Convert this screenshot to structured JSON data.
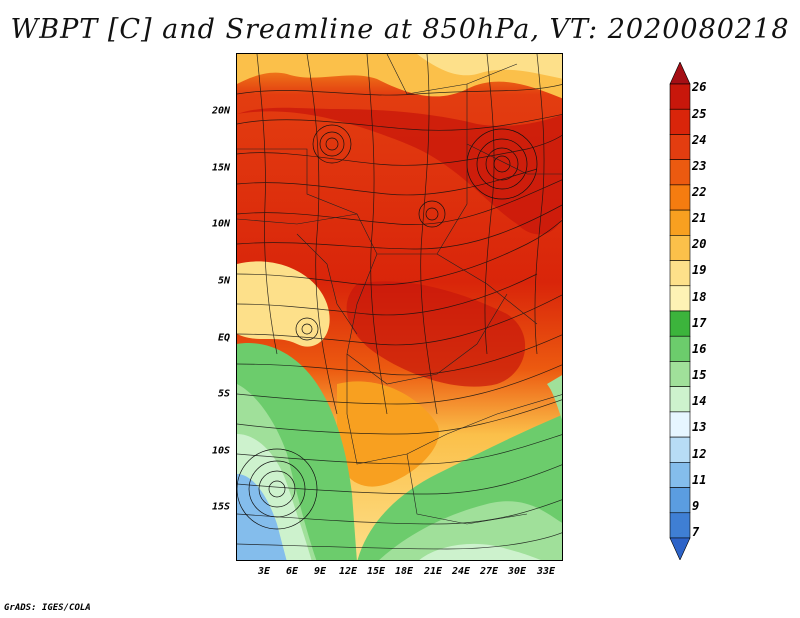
{
  "title": "WBPT [C] and Sreamline at 850hPa, VT: 2020080218",
  "credit": "GrADS: IGES/COLA",
  "map": {
    "lat_labels": [
      "20N",
      "15N",
      "10N",
      "5N",
      "EQ",
      "5S",
      "10S",
      "15S"
    ],
    "lon_labels": [
      "3E",
      "6E",
      "9E",
      "12E",
      "15E",
      "18E",
      "21E",
      "24E",
      "27E",
      "30E",
      "33E"
    ],
    "lat_range": [
      -20,
      24
    ],
    "lon_range": [
      0,
      35
    ]
  },
  "colorbar": {
    "labels": [
      "26",
      "25",
      "24",
      "23",
      "22",
      "21",
      "20",
      "19",
      "18",
      "17",
      "16",
      "15",
      "14",
      "13",
      "12",
      "11",
      "9",
      "7"
    ],
    "colors": [
      "#a50f15",
      "#c8170b",
      "#d9250a",
      "#e33d10",
      "#ec5a10",
      "#f57c10",
      "#f8a020",
      "#fbc04a",
      "#fde08a",
      "#fdf2b5",
      "#3cb43c",
      "#6ccc6c",
      "#a0e09a",
      "#cdf2cd",
      "#e6f6ff",
      "#b7dcf5",
      "#84bdec",
      "#5b9de0",
      "#3f7fd4",
      "#2d63c8"
    ]
  }
}
